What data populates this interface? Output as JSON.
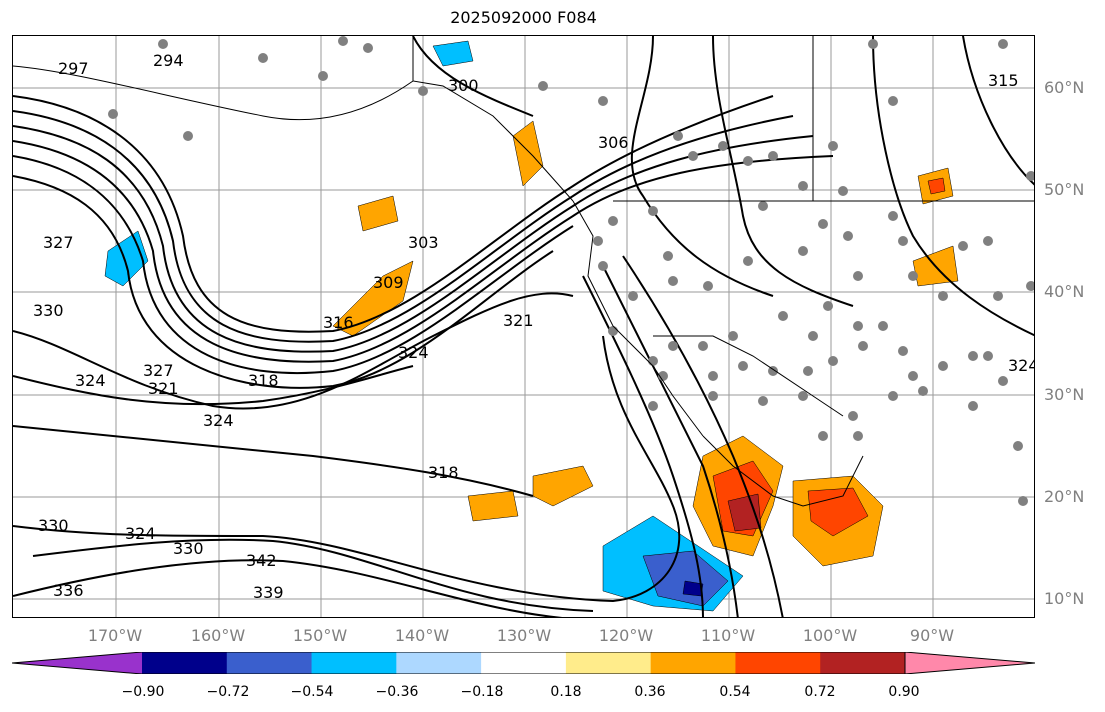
{
  "title": "2025092000 F084",
  "lat_labels": [
    "60°N",
    "50°N",
    "40°N",
    "30°N",
    "20°N",
    "10°N"
  ],
  "lon_labels": [
    "170°W",
    "160°W",
    "150°W",
    "140°W",
    "130°W",
    "120°W",
    "110°W",
    "100°W",
    "90°W"
  ],
  "contour_labels": [
    "297",
    "294",
    "300",
    "306",
    "315",
    "327",
    "330",
    "303",
    "309",
    "316",
    "327",
    "324",
    "321",
    "318",
    "324",
    "321",
    "324",
    "318",
    "330",
    "324",
    "330",
    "342",
    "339",
    "336",
    "324"
  ],
  "colorbar": {
    "tick_labels": [
      "−0.90",
      "−0.72",
      "−0.54",
      "−0.36",
      "−0.18",
      "0.18",
      "0.36",
      "0.54",
      "0.72",
      "0.90"
    ],
    "colors": [
      "#9932cc",
      "#00008b",
      "#3a5fcd",
      "#00bfff",
      "#add8ff",
      "#ffffff",
      "#ffec8b",
      "#ffa500",
      "#ff4500",
      "#b22222",
      "#ff88aa"
    ]
  }
}
